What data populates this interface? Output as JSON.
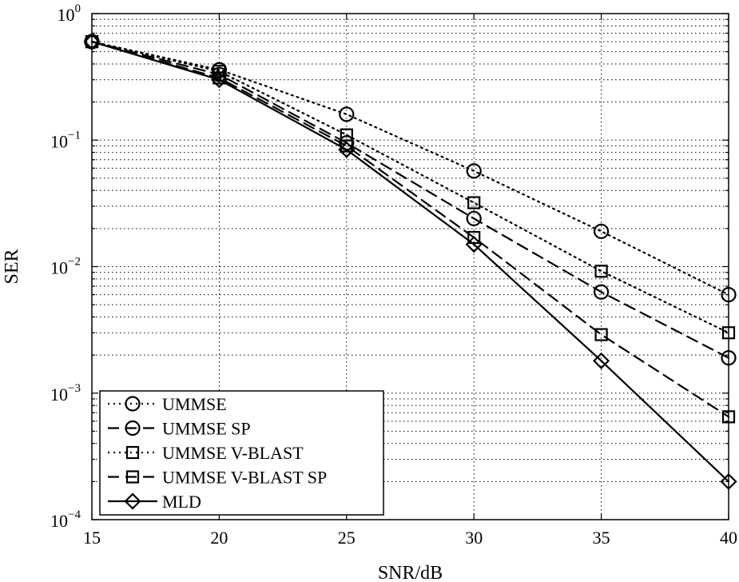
{
  "chart_data": {
    "type": "line",
    "title": "",
    "xlabel": "SNR/dB",
    "ylabel": "SER",
    "xlim": [
      15,
      40
    ],
    "ylim": [
      0.0001,
      1
    ],
    "yscale": "log",
    "grid": true,
    "legend_position": "bottom-left",
    "x_ticks": [
      15,
      20,
      25,
      30,
      35,
      40
    ],
    "x_tick_labels": [
      "15",
      "20",
      "25",
      "30",
      "35",
      "40"
    ],
    "y_ticks": [
      {
        "value": 1,
        "base": "10",
        "exp": "0"
      },
      {
        "value": 0.1,
        "base": "10",
        "exp": "−1"
      },
      {
        "value": 0.01,
        "base": "10",
        "exp": "−2"
      },
      {
        "value": 0.001,
        "base": "10",
        "exp": "−3"
      },
      {
        "value": 0.0001,
        "base": "10",
        "exp": "−4"
      }
    ],
    "x": [
      15,
      20,
      25,
      30,
      35,
      40
    ],
    "series": [
      {
        "name": "UMMSE",
        "line": "dotted",
        "marker": "circle",
        "values": [
          0.6,
          0.36,
          0.16,
          0.057,
          0.019,
          0.006
        ]
      },
      {
        "name": "UMMSE SP",
        "line": "dashed",
        "marker": "circle",
        "values": [
          0.6,
          0.33,
          0.095,
          0.024,
          0.0063,
          0.0019
        ]
      },
      {
        "name": "UMMSE V-BLAST",
        "line": "dotted",
        "marker": "square",
        "values": [
          0.6,
          0.35,
          0.11,
          0.032,
          0.0092,
          0.003
        ]
      },
      {
        "name": "UMMSE V-BLAST SP",
        "line": "dashed",
        "marker": "square",
        "values": [
          0.6,
          0.31,
          0.09,
          0.017,
          0.0029,
          0.00065
        ]
      },
      {
        "name": "MLD",
        "line": "solid",
        "marker": "diamond",
        "values": [
          0.6,
          0.3,
          0.084,
          0.015,
          0.0018,
          0.0002
        ]
      }
    ]
  }
}
